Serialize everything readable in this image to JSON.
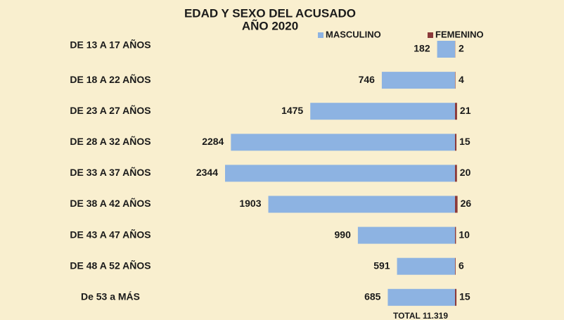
{
  "chart_data": {
    "type": "bar",
    "orientation": "horizontal",
    "title": "EDAD Y SEXO DEL ACUSADO",
    "subtitle": "AÑO 2020",
    "categories": [
      "DE 13 A 17 AÑOS",
      "DE 18 A 22 AÑOS",
      "DE 23 A 27 AÑOS",
      "DE 28 A 32 AÑOS",
      "DE 33 A 37 AÑOS",
      "DE 38 A 42 AÑOS",
      "DE 43 A 47 AÑOS",
      "DE 48 A 52 AÑOS",
      "De 53 a MÁS"
    ],
    "series": [
      {
        "name": "MASCULINO",
        "color": "#8db3e2",
        "values": [
          182,
          746,
          1475,
          2284,
          2344,
          1903,
          990,
          591,
          685
        ]
      },
      {
        "name": "FEMENINO",
        "color": "#8b3a3a",
        "values": [
          2,
          4,
          21,
          15,
          20,
          26,
          10,
          6,
          15
        ]
      }
    ],
    "annotations": [
      "TOTAL 11.319"
    ]
  }
}
